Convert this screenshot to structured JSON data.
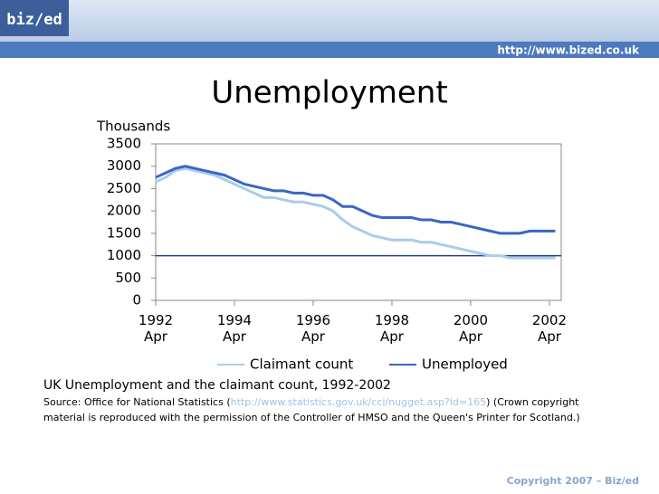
{
  "header": {
    "logo": "biz/ed",
    "url": "http://www.bized.co.uk"
  },
  "chart_data": {
    "type": "line",
    "title": "Unemployment",
    "y_label": "Thousands",
    "x": [
      1992.25,
      1992.5,
      1992.75,
      1993.0,
      1993.25,
      1993.5,
      1993.75,
      1994.0,
      1994.25,
      1994.5,
      1994.75,
      1995.0,
      1995.25,
      1995.5,
      1995.75,
      1996.0,
      1996.25,
      1996.5,
      1996.75,
      1997.0,
      1997.25,
      1997.5,
      1997.75,
      1998.0,
      1998.25,
      1998.5,
      1998.75,
      1999.0,
      1999.25,
      1999.5,
      1999.75,
      2000.0,
      2000.25,
      2000.5,
      2000.75,
      2001.0,
      2001.25,
      2001.5,
      2001.75,
      2002.0,
      2002.25,
      2002.4
    ],
    "series": [
      {
        "name": "Claimant count",
        "color": "#a9cdea",
        "values": [
          2650,
          2750,
          2900,
          2950,
          2900,
          2850,
          2800,
          2700,
          2600,
          2500,
          2400,
          2300,
          2300,
          2250,
          2200,
          2200,
          2150,
          2100,
          2000,
          1800,
          1650,
          1550,
          1450,
          1400,
          1350,
          1350,
          1350,
          1300,
          1300,
          1250,
          1200,
          1150,
          1100,
          1050,
          1000,
          1000,
          950,
          950,
          950,
          950,
          950,
          950
        ]
      },
      {
        "name": "Unemployed",
        "color": "#3a66c4",
        "values": [
          2750,
          2850,
          2950,
          3000,
          2950,
          2900,
          2850,
          2800,
          2700,
          2600,
          2550,
          2500,
          2450,
          2450,
          2400,
          2400,
          2350,
          2350,
          2250,
          2100,
          2100,
          2000,
          1900,
          1850,
          1850,
          1850,
          1850,
          1800,
          1800,
          1750,
          1750,
          1700,
          1650,
          1600,
          1550,
          1500,
          1500,
          1500,
          1550,
          1550,
          1550,
          1550
        ]
      }
    ],
    "reference_line": 1000,
    "xlim": [
      1992.25,
      2002.55
    ],
    "xticks": [
      {
        "value": 1992.25,
        "label": "1992 Apr"
      },
      {
        "value": 1994.25,
        "label": "1994 Apr"
      },
      {
        "value": 1996.25,
        "label": "1996 Apr"
      },
      {
        "value": 1998.25,
        "label": "1998 Apr"
      },
      {
        "value": 2000.25,
        "label": "2000 Apr"
      },
      {
        "value": 2002.25,
        "label": "2002 Apr"
      }
    ],
    "ylim": [
      0,
      3500
    ],
    "yticks": [
      0,
      500,
      1000,
      1500,
      2000,
      2500,
      3000,
      3500
    ],
    "legend": "bottom"
  },
  "caption": {
    "title": "UK Unemployment and the claimant count, 1992-2002",
    "source_prefix": "Source: Office for National Statistics (",
    "source_link": "http://www.statistics.gov.uk/cci/nugget.asp?id=165",
    "source_suffix": ") (Crown copyright material is reproduced with the permission of the Controller of HMSO and the Queen's Printer for Scotland.)"
  },
  "footer": {
    "copyright": "Copyright 2007 – Biz/ed"
  }
}
